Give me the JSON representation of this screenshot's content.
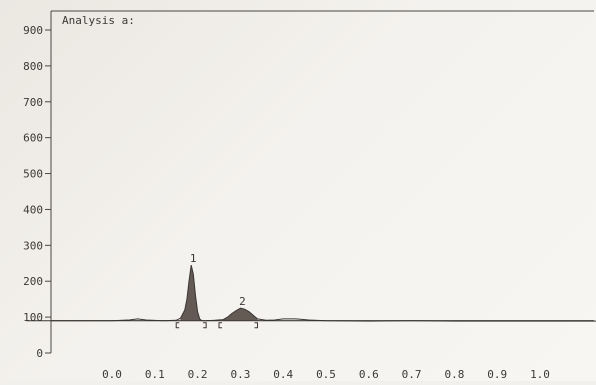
{
  "chart_data": {
    "type": "line",
    "title": "Analysis a:",
    "xlabel": "",
    "ylabel": "",
    "xlim": [
      -0.2,
      1.16
    ],
    "ylim": [
      0,
      900
    ],
    "x_ticks": [
      "0.0",
      "0.1",
      "0.2",
      "0.3",
      "0.4",
      "0.5",
      "0.6",
      "0.7",
      "0.8",
      "0.9",
      "1.0"
    ],
    "y_ticks": [
      "0",
      "100",
      "200",
      "300",
      "400",
      "500",
      "600",
      "700",
      "800",
      "900"
    ],
    "baseline": 90,
    "grid": false,
    "series": [
      {
        "x": [
          -0.2,
          0.0,
          0.04,
          0.06,
          0.08,
          0.12,
          0.15,
          0.16,
          0.17,
          0.175,
          0.18,
          0.185,
          0.19,
          0.195,
          0.2,
          0.205,
          0.21,
          0.22,
          0.24,
          0.26,
          0.27,
          0.28,
          0.29,
          0.3,
          0.31,
          0.32,
          0.33,
          0.34,
          0.36,
          0.38,
          0.4,
          0.43,
          0.46,
          0.5,
          0.6,
          0.7,
          0.8,
          0.9,
          1.0,
          1.16
        ],
        "y": [
          90,
          90,
          92,
          95,
          92,
          90,
          91,
          97,
          120,
          150,
          200,
          245,
          220,
          160,
          115,
          95,
          90,
          90,
          91,
          93,
          100,
          110,
          118,
          125,
          122,
          115,
          105,
          95,
          91,
          92,
          95,
          95,
          92,
          90,
          89,
          90,
          89,
          89,
          89,
          89
        ]
      }
    ],
    "peaks": [
      {
        "label": "1",
        "x": 0.185,
        "y": 245
      },
      {
        "label": "2",
        "x": 0.3,
        "y": 125
      }
    ],
    "integration_marks": [
      {
        "start": 0.15,
        "end": 0.22
      },
      {
        "start": 0.25,
        "end": 0.34
      }
    ]
  }
}
